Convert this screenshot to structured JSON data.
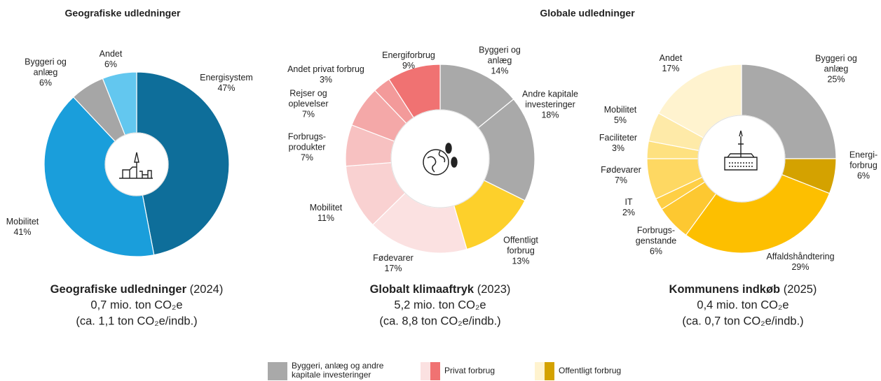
{
  "headers": [
    "Geografiske udledninger",
    "Globale udledninger"
  ],
  "chart_data": [
    {
      "type": "donut",
      "caption": {
        "name": "Geografiske udledninger",
        "year": "(2024)",
        "total": "0,7 mio. ton CO₂e",
        "per_capita": "(ca. 1,1 ton CO₂e/indb.)"
      },
      "categories": [
        [
          "Energisystem"
        ],
        [
          "Mobilitet"
        ],
        [
          "Byggeri og",
          "anlæg"
        ],
        [
          "Andet"
        ]
      ],
      "values": [
        47,
        41,
        6,
        6
      ],
      "value_labels": [
        "47%",
        "41%",
        "6%",
        "6%"
      ],
      "colors": [
        "#0e6e9a",
        "#1a9edb",
        "#a6a6a6",
        "#63c7ef"
      ]
    },
    {
      "type": "donut",
      "caption": {
        "name": "Globalt klimaaftryk",
        "year": "(2023)",
        "total": "5,2 mio. ton CO₂e",
        "per_capita": "(ca. 8,8 ton CO₂e/indb.)"
      },
      "categories": [
        [
          "Byggeri og",
          "anlæg"
        ],
        [
          "Andre kapitale",
          "investeringer"
        ],
        [
          "Offentligt",
          "forbrug"
        ],
        [
          "Fødevarer"
        ],
        [
          "Mobilitet"
        ],
        [
          "Forbrugs-",
          "produkter"
        ],
        [
          "Rejser og",
          "oplevelser"
        ],
        [
          "Andet privat forbrug"
        ],
        [
          "Energiforbrug"
        ]
      ],
      "values": [
        14,
        18,
        13,
        17,
        11,
        7,
        7,
        3,
        9
      ],
      "value_labels": [
        "14%",
        "18%",
        "13%",
        "17%",
        "11%",
        "7%",
        "7%",
        "3%",
        "9%"
      ],
      "colors": [
        "#a9a9a9",
        "#a9a9a9",
        "#fdd02b",
        "#fbe1e1",
        "#f9d1d1",
        "#f7c1c1",
        "#f4a8a8",
        "#f39a9a",
        "#f07272"
      ]
    },
    {
      "type": "donut",
      "caption": {
        "name": "Kommunens indkøb",
        "year": "(2025)",
        "total": "0,4 mio. ton CO₂e",
        "per_capita": "(ca. 0,7 ton CO₂e/indb.)"
      },
      "categories": [
        [
          "Byggeri og",
          "anlæg"
        ],
        [
          "Energi-",
          "forbrug"
        ],
        [
          "Affaldshåndtering"
        ],
        [
          "Forbrugs-",
          "genstande"
        ],
        [
          "IT"
        ],
        [
          "Fødevarer"
        ],
        [
          "Faciliteter"
        ],
        [
          "Mobilitet"
        ],
        [
          "Andet"
        ]
      ],
      "values": [
        25,
        6,
        29,
        6,
        2,
        7,
        3,
        5,
        17
      ],
      "value_labels": [
        "25%",
        "6%",
        "29%",
        "6%",
        "2%",
        "7%",
        "3%",
        "5%",
        "17%"
      ],
      "colors": [
        "#a9a9a9",
        "#d4a200",
        "#fdbf00",
        "#fdc831",
        "#fecf45",
        "#fed862",
        "#fee180",
        "#feeaa8",
        "#fff3cf"
      ]
    }
  ],
  "legend": [
    {
      "label": [
        "Byggeri, anlæg og andre",
        "kapitale investeringer"
      ],
      "colors": [
        "#a9a9a9",
        "#a9a9a9"
      ]
    },
    {
      "label": [
        "Privat forbrug"
      ],
      "colors": [
        "#fbe1e1",
        "#f07272"
      ]
    },
    {
      "label": [
        "Offentligt forbrug"
      ],
      "colors": [
        "#fff3cf",
        "#d4a200"
      ]
    }
  ]
}
